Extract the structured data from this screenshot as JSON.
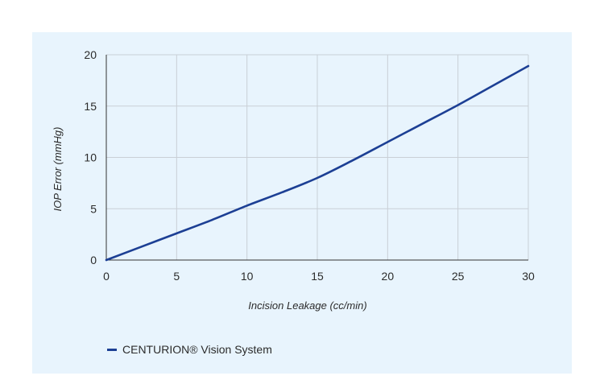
{
  "chart_data": {
    "type": "line",
    "title": "",
    "xlabel": "Incision Leakage (cc/min)",
    "ylabel": "IOP Error (mmHg)",
    "xlim": [
      0,
      30
    ],
    "ylim": [
      0,
      20
    ],
    "xticks": [
      0,
      5,
      10,
      15,
      20,
      25,
      30
    ],
    "yticks": [
      0,
      5,
      10,
      15,
      20
    ],
    "grid": true,
    "legend_position": "bottom-left",
    "series": [
      {
        "name": "CENTURION® Vision System",
        "color": "#1c3f94",
        "x": [
          0,
          2.5,
          5,
          7.5,
          10,
          12.5,
          15,
          17.5,
          20,
          22.5,
          25,
          27.5,
          30
        ],
        "y": [
          0,
          1.3,
          2.6,
          3.9,
          5.3,
          6.6,
          8.0,
          9.7,
          11.5,
          13.3,
          15.1,
          17.0,
          18.9
        ]
      }
    ]
  }
}
